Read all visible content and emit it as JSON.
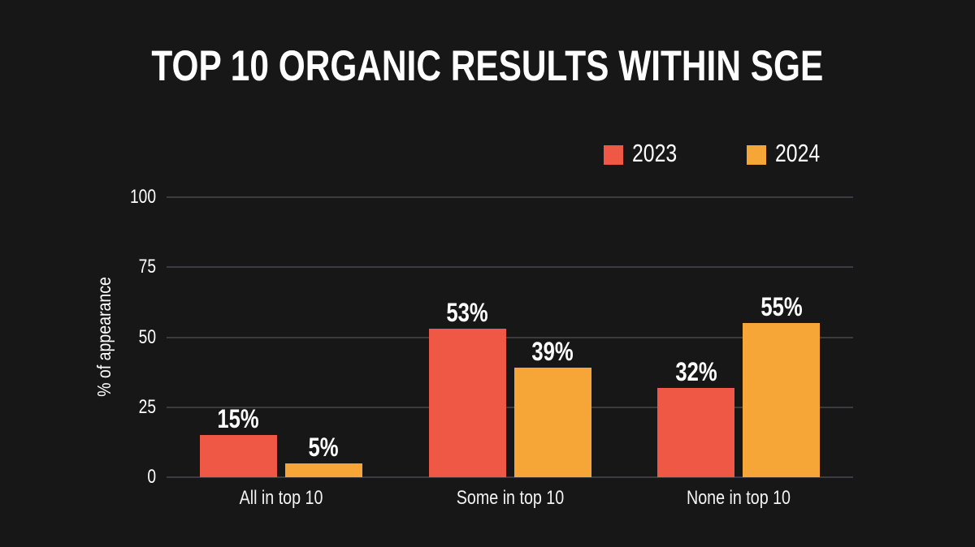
{
  "chart_data": {
    "type": "bar",
    "title": "TOP 10 ORGANIC RESULTS WITHIN SGE",
    "ylabel": "% of appearance",
    "xlabel": "",
    "categories": [
      "All in top 10",
      "Some in top 10",
      "None in top 10"
    ],
    "series": [
      {
        "name": "2023",
        "color": "#EE5844",
        "values": [
          15,
          53,
          32
        ]
      },
      {
        "name": "2024",
        "color": "#F5A636",
        "values": [
          5,
          39,
          55
        ]
      }
    ],
    "value_suffix": "%",
    "yticks": [
      0,
      25,
      50,
      75,
      100
    ],
    "ylim": [
      0,
      100
    ],
    "grid": true,
    "legend_position": "top-right"
  },
  "colors": {
    "background": "#171718",
    "gridline": "#3b3c3f",
    "text": "#ffffff"
  }
}
